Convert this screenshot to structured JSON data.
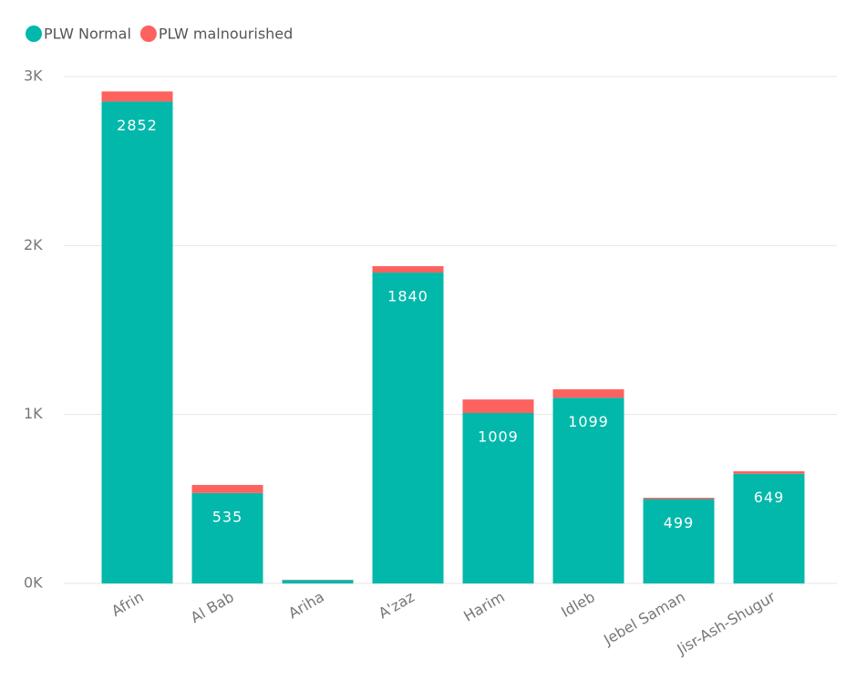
{
  "chart_data": {
    "type": "stacked-bar",
    "categories": [
      "Afrin",
      "Al Bab",
      "Ariha",
      "A'zaz",
      "Harim",
      "Idleb",
      "Jebel Saman",
      "Jisr-Ash-Shugur"
    ],
    "series": [
      {
        "name": "PLW Normal",
        "color": "#01b8aa",
        "values": [
          2852,
          535,
          20,
          1840,
          1009,
          1099,
          499,
          649
        ]
      },
      {
        "name": "PLW malnourished",
        "color": "#fd625e",
        "values": [
          60,
          48,
          2,
          38,
          80,
          50,
          8,
          15
        ]
      }
    ],
    "ylim": [
      0,
      3000
    ],
    "yticks": [
      {
        "value": 0,
        "label": "0K"
      },
      {
        "value": 1000,
        "label": "1K"
      },
      {
        "value": 2000,
        "label": "2K"
      },
      {
        "value": 3000,
        "label": "3K"
      }
    ],
    "grid": true
  }
}
